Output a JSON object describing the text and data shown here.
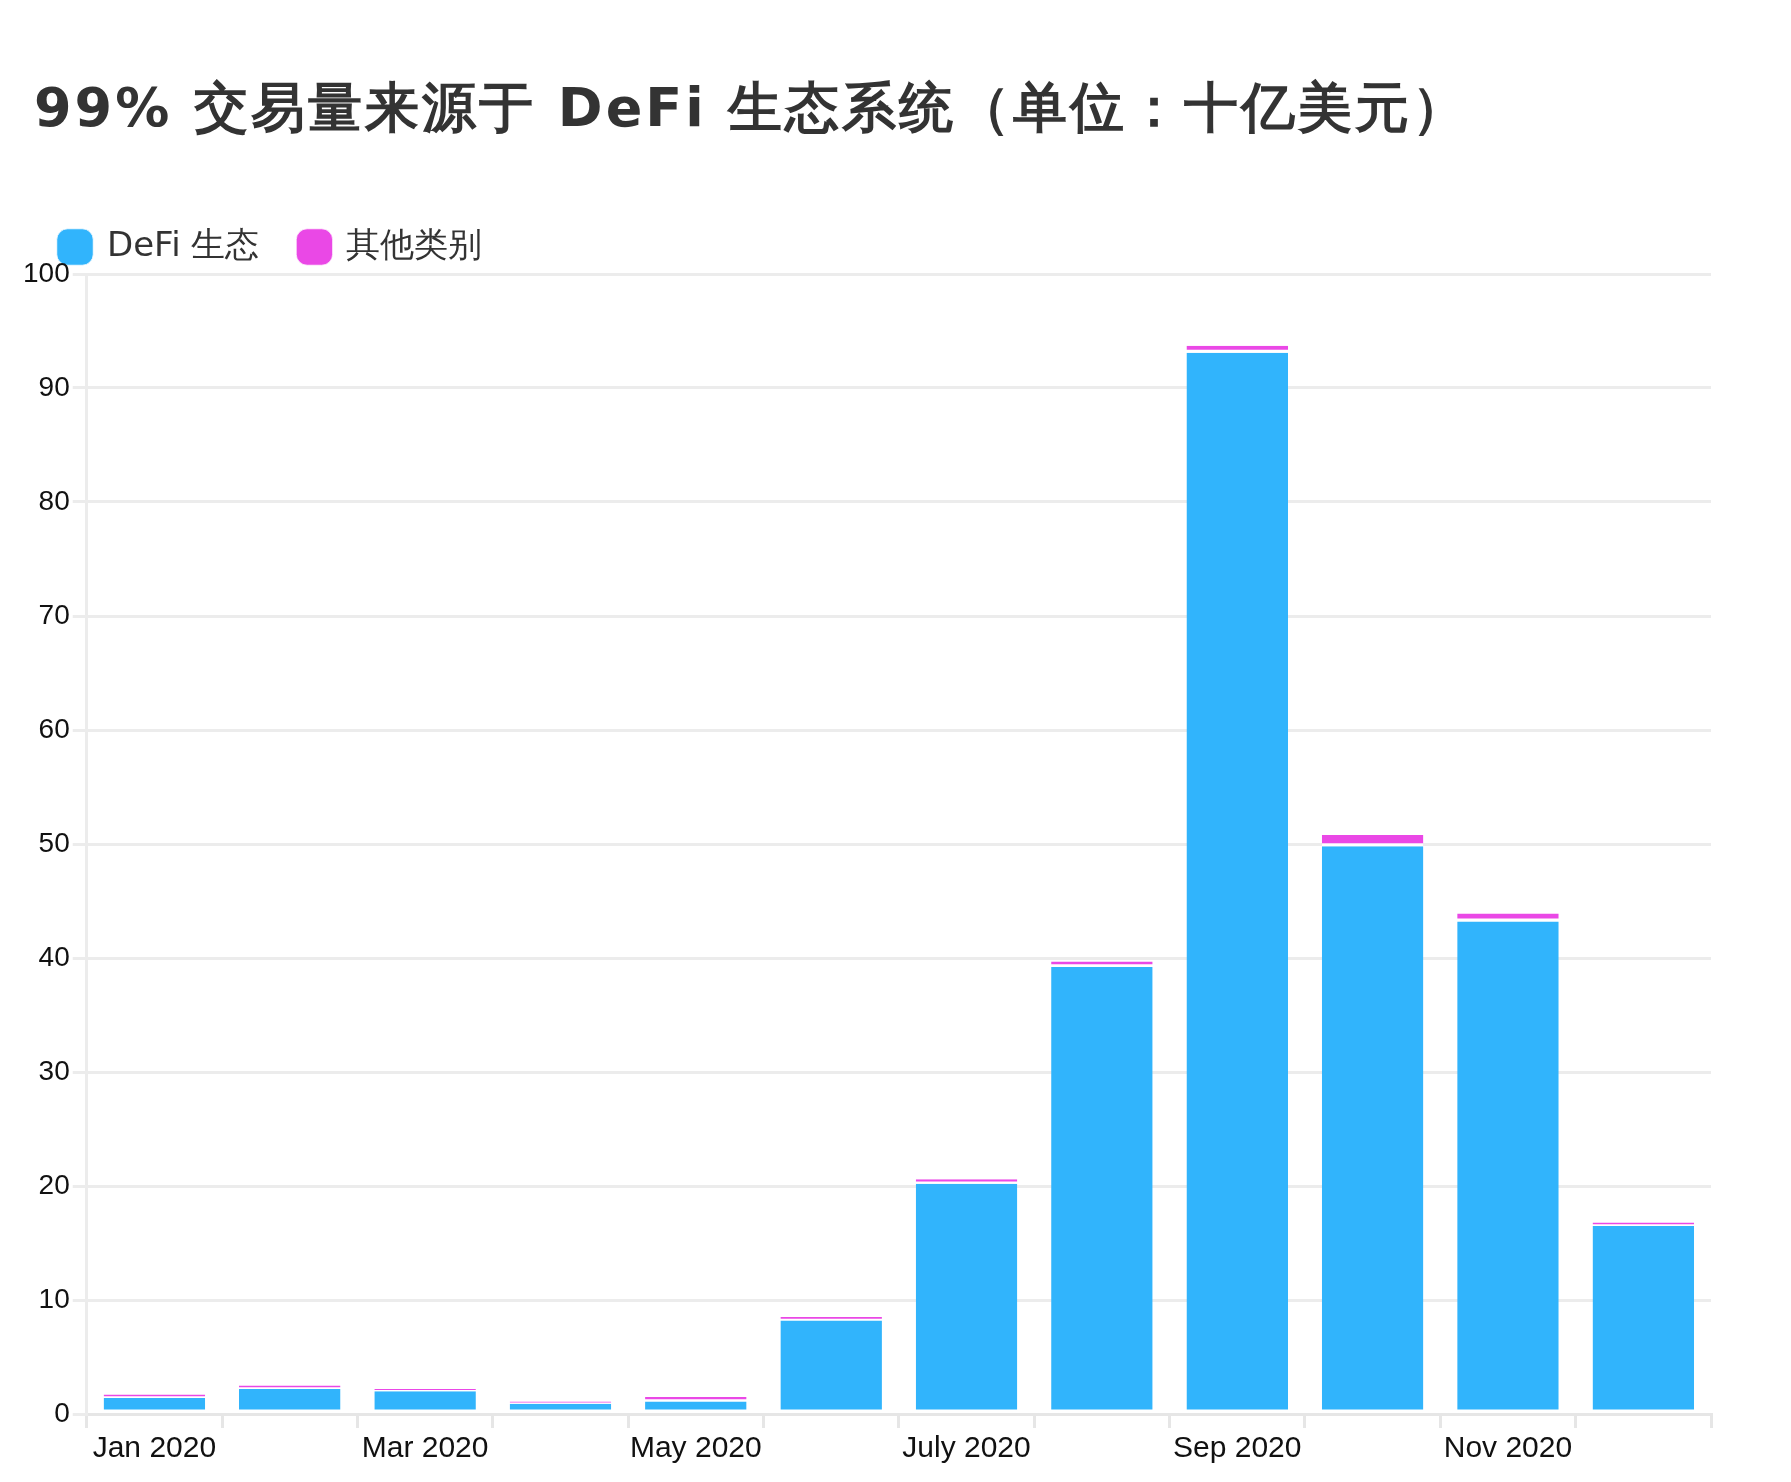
{
  "chart_data": {
    "type": "bar",
    "title": "99% 交易量来源于 DeFi 生态系统（单位：十亿美元）",
    "categories": [
      "Jan 2020",
      null,
      "Mar 2020",
      null,
      "May 2020",
      null,
      "July 2020",
      null,
      "Sep 2020",
      null,
      "Nov 2020",
      null
    ],
    "series": [
      {
        "name": "DeFi 生态",
        "color": "#31b4fc",
        "values": [
          1.4,
          2.2,
          2.0,
          0.9,
          1.1,
          8.2,
          20.2,
          39.2,
          93.1,
          49.8,
          43.2,
          16.5
        ]
      },
      {
        "name": "其他类别",
        "color": "#ea48e6",
        "values": [
          0.3,
          0.3,
          0.2,
          0.2,
          0.4,
          0.3,
          0.4,
          0.5,
          0.6,
          1.0,
          0.7,
          0.3
        ]
      }
    ],
    "stacked": true,
    "ylim": [
      0,
      100
    ],
    "yticks": [
      0,
      10,
      20,
      30,
      40,
      50,
      60,
      70,
      80,
      90,
      100
    ],
    "grid": "y",
    "legend": "top left"
  }
}
